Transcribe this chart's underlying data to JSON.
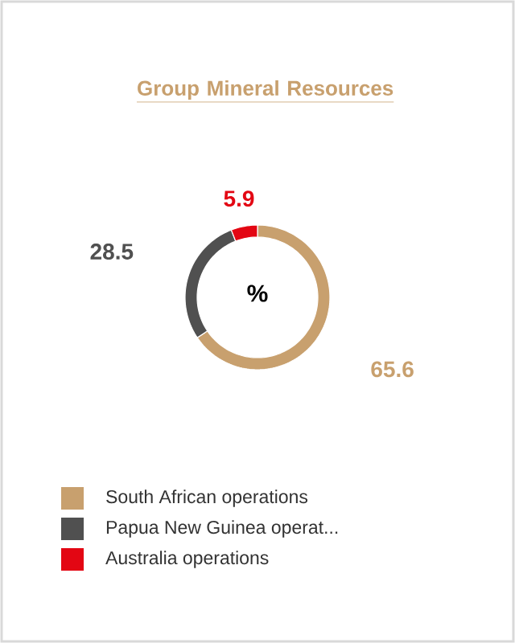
{
  "chart_data": {
    "type": "donut",
    "title": "Group Mineral Resources",
    "categories": [
      "South African operations",
      "Papua New Guinea operat...",
      "Australia operations"
    ],
    "values": [
      65.6,
      28.5,
      5.9
    ],
    "colors": [
      "#c8a06e",
      "#505050",
      "#e30613"
    ],
    "data_labels": true,
    "annotations": [
      "%"
    ],
    "legend": "bottom"
  }
}
